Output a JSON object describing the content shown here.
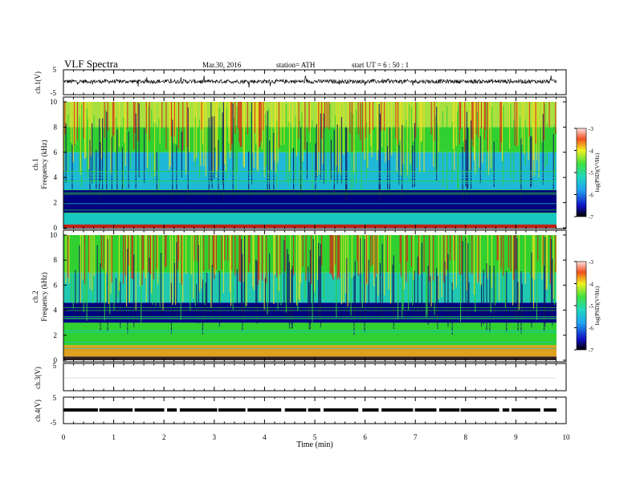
{
  "header": {
    "title": "VLF  Spectra",
    "date": "Mar.30, 2016",
    "station": "station= ATH",
    "start": "start  UT  =   6  : 50 : 1"
  },
  "colors": {
    "spec_low": "#000080",
    "spec_mid": "#18c8c0",
    "spec_green": "#30d030",
    "spec_high": "#f0e020",
    "spec_max": "#e02010",
    "trace": "#000000",
    "bg": "#ffffff"
  },
  "chart_data": [
    {
      "type": "line",
      "panel": "ch1-waveform",
      "ylabel": "ch.1(V)",
      "ylim": [
        -5,
        5
      ],
      "yticklabels": [
        "5",
        "-5"
      ],
      "xlim": [
        0,
        10
      ],
      "description_values": "noisy waveform oscillating roughly between -1 and 1 V with spikes to about ±2 V"
    },
    {
      "type": "heatmap",
      "panel": "ch1-spectrogram",
      "ylabel": "ch.1\nFrequency  (kHz)",
      "ylabel_line1": "ch.1",
      "ylabel_line2": "Frequency  (kHz)",
      "ylim": [
        0,
        10
      ],
      "yticklabels": [
        "0",
        "2",
        "4",
        "6",
        "8",
        "10"
      ],
      "xlim": [
        0,
        10
      ],
      "colorbar": {
        "label": "log(PSD)(V²/Hz)",
        "range": [
          -7,
          -3
        ],
        "ticklabels": [
          "-3",
          "-4",
          "-5",
          "-6",
          "-7"
        ]
      }
    },
    {
      "type": "heatmap",
      "panel": "ch2-spectrogram",
      "ylabel_line1": "ch.2",
      "ylabel_line2": "Frequency  (kHz)",
      "ylim": [
        0,
        10
      ],
      "yticklabels": [
        "0",
        "2",
        "4",
        "6",
        "8",
        "10"
      ],
      "xlim": [
        0,
        10
      ],
      "colorbar": {
        "label": "log(PSD)(V²/Hz)",
        "range": [
          -7,
          -3
        ],
        "ticklabels": [
          "-3",
          "-4",
          "-5",
          "-6",
          "-7"
        ]
      }
    },
    {
      "type": "line",
      "panel": "ch3-waveform",
      "ylabel": "ch.3(V)",
      "ylim": [
        -5,
        5
      ],
      "yticklabels": [
        "5"
      ],
      "xlim": [
        0,
        10
      ],
      "level": 0
    },
    {
      "type": "line",
      "panel": "ch4-waveform",
      "ylabel": "ch.4(V)",
      "ylim": [
        -5,
        5
      ],
      "yticklabels": [
        "5",
        "-5"
      ],
      "xlim": [
        0,
        10
      ],
      "level": 0
    }
  ],
  "xaxis": {
    "label": "Time  (min)",
    "ticklabels": [
      "0",
      "1",
      "2",
      "3",
      "4",
      "5",
      "6",
      "7",
      "8",
      "9",
      "10"
    ]
  }
}
